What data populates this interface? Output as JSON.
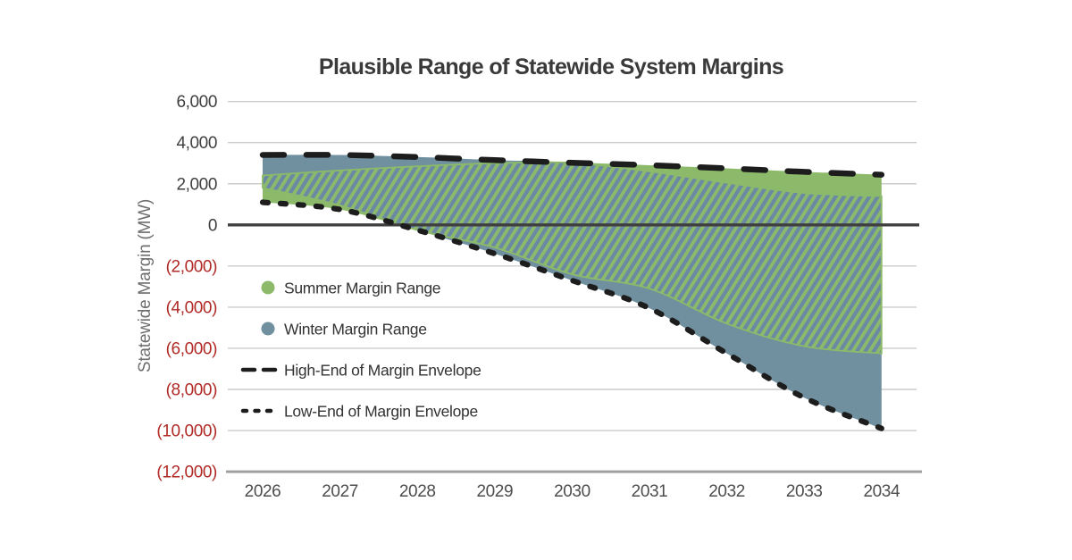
{
  "title": "Plausible Range of Statewide System Margins",
  "y_axis": {
    "label": "Statewide Margin (MW)",
    "ticks": [
      {
        "label": "6,000",
        "value": 6000
      },
      {
        "label": "4,000",
        "value": 4000
      },
      {
        "label": "2,000",
        "value": 2000
      },
      {
        "label": "0",
        "value": 0
      },
      {
        "label": "(2,000)",
        "value": -2000
      },
      {
        "label": "(4,000)",
        "value": -4000
      },
      {
        "label": "(6,000)",
        "value": -6000
      },
      {
        "label": "(8,000)",
        "value": -8000
      },
      {
        "label": "(10,000)",
        "value": -10000
      },
      {
        "label": "(12,000)",
        "value": -12000
      }
    ]
  },
  "x_axis": {
    "ticks": [
      "2026",
      "2027",
      "2028",
      "2029",
      "2030",
      "2031",
      "2032",
      "2033",
      "2034"
    ]
  },
  "legend": [
    {
      "label": "Summer Margin Range",
      "marker": "green-circle"
    },
    {
      "label": "Winter Margin Range",
      "marker": "blue-circle"
    },
    {
      "label": "High-End of Margin Envelope",
      "marker": "long-dash-line"
    },
    {
      "label": "Low-End of Margin Envelope",
      "marker": "short-dash-line"
    }
  ],
  "colors": {
    "summer_green": "#8cba6a",
    "winter_blue": "#70909f",
    "hatch_blue": "#6b89a4",
    "envelope_black": "#1d1d1d",
    "zero_line": "#3f3f3f",
    "gridline": "#cccccc",
    "axis_line": "#a0a0a0",
    "tick_text": "#3f3f3f",
    "negative_text": "#b02a26",
    "title_text": "#3a3a3a"
  },
  "chart_data": {
    "type": "area",
    "title": "Plausible Range of Statewide System Margins",
    "xlabel": "",
    "ylabel": "Statewide Margin (MW)",
    "x": [
      2026,
      2027,
      2028,
      2029,
      2030,
      2031,
      2032,
      2033,
      2034
    ],
    "ylim": [
      -12000,
      6000
    ],
    "ytick_step": 2000,
    "grid": true,
    "legend_position": "inside-left",
    "overlap_style": "diagonal green hatch over blue where summer and winter ranges overlap",
    "series": [
      {
        "name": "Summer Margin Range",
        "type": "band",
        "high": [
          2400,
          2650,
          2850,
          3000,
          3020,
          2900,
          2750,
          2580,
          2440
        ],
        "low": [
          1100,
          750,
          -250,
          -1100,
          -2400,
          -3100,
          -4800,
          -5900,
          -6250
        ]
      },
      {
        "name": "Winter Margin Range",
        "type": "band",
        "high": [
          3400,
          3400,
          3300,
          3150,
          3020,
          2600,
          2050,
          1550,
          1400
        ],
        "low": [
          1800,
          950,
          -250,
          -1400,
          -2700,
          -4050,
          -6250,
          -8400,
          -9900
        ]
      },
      {
        "name": "High-End of Margin Envelope",
        "type": "line",
        "dash": "long",
        "values": [
          3400,
          3400,
          3300,
          3150,
          3020,
          2900,
          2750,
          2580,
          2440
        ]
      },
      {
        "name": "Low-End of Margin Envelope",
        "type": "line",
        "dash": "short",
        "values": [
          1100,
          750,
          -250,
          -1400,
          -2700,
          -4050,
          -6250,
          -8400,
          -9900
        ]
      }
    ]
  }
}
